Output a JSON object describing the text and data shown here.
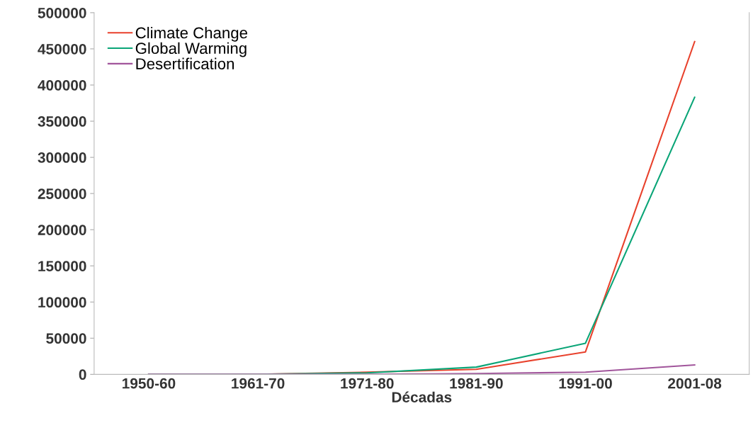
{
  "chart_data": {
    "type": "line",
    "xlabel": "Décadas",
    "categories": [
      "1950-60",
      "1961-70",
      "1971-80",
      "1981-90",
      "1991-00",
      "2001-08"
    ],
    "series": [
      {
        "name": "Climate Change",
        "color": "#e8412c",
        "values": [
          0,
          0,
          3000,
          7000,
          31000,
          460000
        ]
      },
      {
        "name": "Global Warming",
        "color": "#0aa577",
        "values": [
          0,
          0,
          2000,
          10000,
          43000,
          383000
        ]
      },
      {
        "name": "Desertification",
        "color": "#a1559b",
        "values": [
          0,
          0,
          0,
          1000,
          3000,
          13000
        ]
      }
    ],
    "ylim": [
      0,
      500000
    ],
    "yticks": [
      0,
      50000,
      100000,
      150000,
      200000,
      250000,
      300000,
      350000,
      400000,
      450000,
      500000
    ],
    "grid": false,
    "legend": "top left",
    "marker": "none",
    "line_style": "solid"
  }
}
